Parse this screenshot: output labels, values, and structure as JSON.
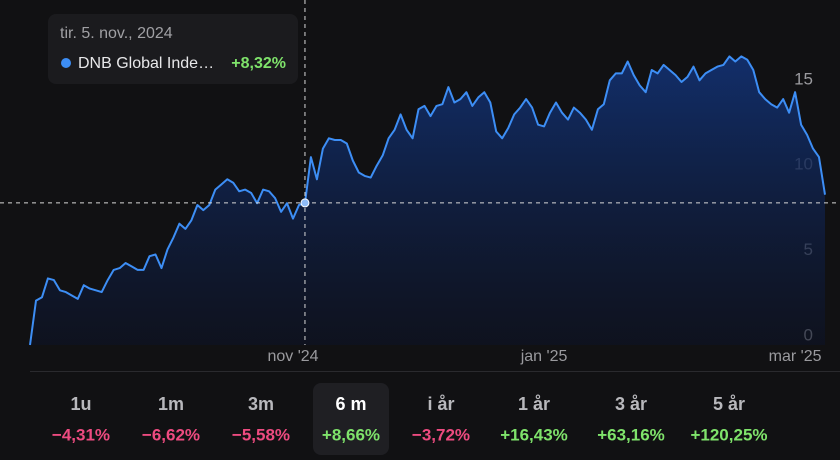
{
  "chart_data": {
    "type": "line",
    "categories": [
      null,
      null,
      null,
      null,
      null,
      null,
      null,
      null,
      null,
      null,
      null,
      null,
      null,
      null,
      null,
      null,
      null,
      null,
      null,
      null,
      null,
      null,
      null,
      null,
      null,
      null,
      null,
      null,
      null,
      null,
      null,
      null,
      null,
      null,
      null,
      null,
      null,
      null,
      null,
      null,
      null,
      null,
      null,
      null,
      "nov '24",
      null,
      null,
      null,
      null,
      null,
      null,
      null,
      null,
      null,
      null,
      null,
      null,
      null,
      null,
      null,
      null,
      null,
      null,
      null,
      null,
      null,
      null,
      null,
      null,
      null,
      null,
      null,
      null,
      null,
      null,
      null,
      null,
      null,
      null,
      null,
      null,
      null,
      null,
      null,
      null,
      null,
      "jan '25",
      null,
      null,
      null,
      null,
      null,
      null,
      null,
      null,
      null,
      null,
      null,
      null,
      null,
      null,
      null,
      null,
      null,
      null,
      null,
      null,
      null,
      null,
      null,
      null,
      null,
      null,
      null,
      null,
      null,
      null,
      null,
      null,
      null,
      null,
      null,
      null,
      null,
      null,
      null,
      null,
      null,
      "mar '25",
      null,
      null,
      null,
      null,
      null
    ],
    "series": [
      {
        "name": "DNB Global Inde…",
        "color": "#3d8ef5",
        "values": [
          0,
          2.6,
          2.8,
          3.9,
          3.8,
          3.2,
          3.1,
          2.9,
          2.7,
          3.5,
          3.3,
          3.2,
          3.1,
          3.8,
          4.4,
          4.5,
          4.8,
          4.6,
          4.4,
          4.4,
          5.2,
          5.3,
          4.5,
          5.6,
          6.3,
          7.1,
          6.8,
          7.3,
          8.2,
          7.9,
          8.2,
          9.1,
          9.4,
          9.7,
          9.5,
          9.0,
          9.1,
          8.9,
          8.3,
          9.1,
          9.0,
          8.6,
          7.8,
          8.3,
          7.4,
          8.2,
          8.32,
          11.0,
          9.7,
          11.5,
          12.1,
          12.0,
          12.0,
          11.8,
          10.8,
          10.1,
          9.9,
          9.8,
          10.5,
          11.1,
          12.1,
          12.6,
          13.5,
          12.6,
          12.1,
          13.8,
          14.0,
          13.4,
          14.0,
          14.1,
          15.1,
          14.2,
          14.4,
          14.8,
          14.0,
          14.5,
          14.8,
          14.2,
          12.5,
          12.1,
          12.7,
          13.5,
          13.9,
          14.4,
          13.9,
          12.9,
          12.8,
          13.6,
          14.2,
          13.6,
          13.2,
          13.9,
          13.6,
          13.2,
          12.6,
          13.8,
          14.1,
          15.5,
          15.9,
          15.9,
          16.6,
          15.8,
          15.2,
          14.8,
          16.1,
          15.9,
          16.4,
          16.1,
          15.8,
          15.4,
          15.7,
          16.3,
          15.5,
          15.9,
          16.1,
          16.3,
          16.4,
          16.9,
          16.6,
          16.9,
          16.7,
          16.1,
          14.8,
          14.4,
          14.1,
          13.9,
          14.4,
          13.6,
          14.8,
          12.9,
          12.3,
          11.5,
          11.0,
          8.8
        ]
      }
    ],
    "ylim": [
      0,
      20.2
    ],
    "yticks": [
      0,
      5,
      10,
      15
    ],
    "crosshair_index": 46,
    "tooltip": {
      "date": "tir. 5. nov., 2024",
      "value_label": "+8,32%"
    }
  },
  "periods": [
    {
      "label": "1u",
      "change": "−4,31%"
    },
    {
      "label": "1m",
      "change": "−6,62%"
    },
    {
      "label": "3m",
      "change": "−5,58%"
    },
    {
      "label": "6 m",
      "change": "+8,66%"
    },
    {
      "label": "i år",
      "change": "−3,72%"
    },
    {
      "label": "1 år",
      "change": "+16,43%"
    },
    {
      "label": "3 år",
      "change": "+63,16%"
    },
    {
      "label": "5 år",
      "change": "+120,25%"
    }
  ],
  "selected_period": 3
}
